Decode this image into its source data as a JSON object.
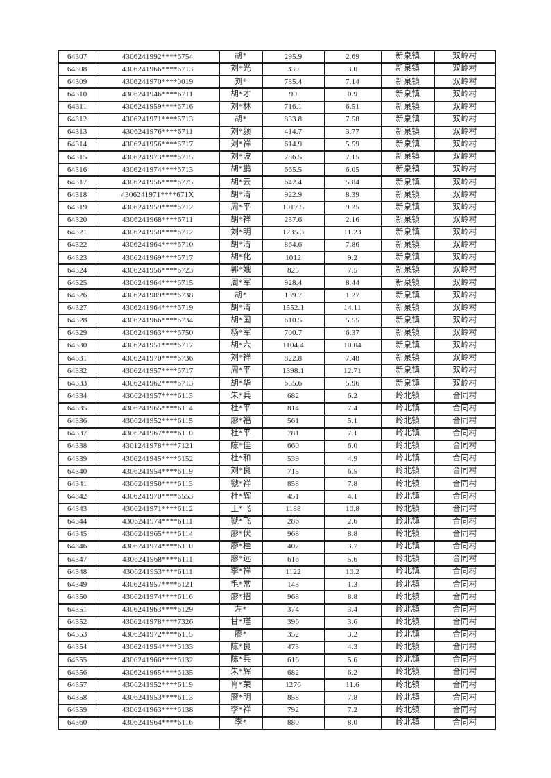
{
  "page": {
    "background_color": "#ffffff",
    "text_color": "#232323",
    "border_color": "#1c1c1c"
  },
  "table": {
    "rows": [
      [
        "64307",
        "4306241992****6754",
        "胡*",
        "295.9",
        "2.69",
        "新泉镇",
        "双岭村"
      ],
      [
        "64308",
        "4306241966****6713",
        "刘*光",
        "330",
        "3.0",
        "新泉镇",
        "双岭村"
      ],
      [
        "64309",
        "4306241970****0019",
        "刘*",
        "785.4",
        "7.14",
        "新泉镇",
        "双岭村"
      ],
      [
        "64310",
        "4306241946****6711",
        "胡*才",
        "99",
        "0.9",
        "新泉镇",
        "双岭村"
      ],
      [
        "64311",
        "4306241959****6716",
        "刘*林",
        "716.1",
        "6.51",
        "新泉镇",
        "双岭村"
      ],
      [
        "64312",
        "4306241971****6713",
        "胡*",
        "833.8",
        "7.58",
        "新泉镇",
        "双岭村"
      ],
      [
        "64313",
        "4306241976****6711",
        "刘*颜",
        "414.7",
        "3.77",
        "新泉镇",
        "双岭村"
      ],
      [
        "64314",
        "4306241956****6717",
        "刘*祥",
        "614.9",
        "5.59",
        "新泉镇",
        "双岭村"
      ],
      [
        "64315",
        "4306241973****6715",
        "刘*波",
        "786.5",
        "7.15",
        "新泉镇",
        "双岭村"
      ],
      [
        "64316",
        "4306241974****6713",
        "胡*鹏",
        "665.5",
        "6.05",
        "新泉镇",
        "双岭村"
      ],
      [
        "64317",
        "4306241956****6775",
        "胡*云",
        "642.4",
        "5.84",
        "新泉镇",
        "双岭村"
      ],
      [
        "64318",
        "4306241971****671X",
        "胡*清",
        "922.9",
        "8.39",
        "新泉镇",
        "双岭村"
      ],
      [
        "64319",
        "4306241959****6712",
        "周*平",
        "1017.5",
        "9.25",
        "新泉镇",
        "双岭村"
      ],
      [
        "64320",
        "4306241968****6711",
        "胡*祥",
        "237.6",
        "2.16",
        "新泉镇",
        "双岭村"
      ],
      [
        "64321",
        "4306241958****6712",
        "刘*明",
        "1235.3",
        "11.23",
        "新泉镇",
        "双岭村"
      ],
      [
        "64322",
        "4306241964****6710",
        "胡*清",
        "864.6",
        "7.86",
        "新泉镇",
        "双岭村"
      ],
      [
        "64323",
        "4306241969****6717",
        "胡*化",
        "1012",
        "9.2",
        "新泉镇",
        "双岭村"
      ],
      [
        "64324",
        "4306241956****6723",
        "郭*娥",
        "825",
        "7.5",
        "新泉镇",
        "双岭村"
      ],
      [
        "64325",
        "4306241964****6715",
        "周*军",
        "928.4",
        "8.44",
        "新泉镇",
        "双岭村"
      ],
      [
        "64326",
        "4306241989****6738",
        "胡*",
        "139.7",
        "1.27",
        "新泉镇",
        "双岭村"
      ],
      [
        "64327",
        "4306241964****6719",
        "胡*清",
        "1552.1",
        "14.11",
        "新泉镇",
        "双岭村"
      ],
      [
        "64328",
        "4306241966****6734",
        "胡*国",
        "610.5",
        "5.55",
        "新泉镇",
        "双岭村"
      ],
      [
        "64329",
        "4306241963****6750",
        "杨*军",
        "700.7",
        "6.37",
        "新泉镇",
        "双岭村"
      ],
      [
        "64330",
        "4306241951****6717",
        "胡*六",
        "1104.4",
        "10.04",
        "新泉镇",
        "双岭村"
      ],
      [
        "64331",
        "4306241970****6736",
        "刘*祥",
        "822.8",
        "7.48",
        "新泉镇",
        "双岭村"
      ],
      [
        "64332",
        "4306241957****6717",
        "周*平",
        "1398.1",
        "12.71",
        "新泉镇",
        "双岭村"
      ],
      [
        "64333",
        "4306241962****6713",
        "胡*华",
        "655.6",
        "5.96",
        "新泉镇",
        "双岭村"
      ],
      [
        "64334",
        "4306241957****6113",
        "朱*兵",
        "682",
        "6.2",
        "岭北镇",
        "合同村"
      ],
      [
        "64335",
        "4306241965****6114",
        "杜*平",
        "814",
        "7.4",
        "岭北镇",
        "合同村"
      ],
      [
        "64336",
        "4306241952****6115",
        "廖*福",
        "561",
        "5.1",
        "岭北镇",
        "合同村"
      ],
      [
        "64337",
        "4306241967****6110",
        "杜*平",
        "781",
        "7.1",
        "岭北镇",
        "合同村"
      ],
      [
        "64338",
        "4301241978****7121",
        "陈*佳",
        "660",
        "6.0",
        "岭北镇",
        "合同村"
      ],
      [
        "64339",
        "4306241945****6152",
        "杜*和",
        "539",
        "4.9",
        "岭北镇",
        "合同村"
      ],
      [
        "64340",
        "4306241954****6119",
        "刘*良",
        "715",
        "6.5",
        "岭北镇",
        "合同村"
      ],
      [
        "64341",
        "4306241950****6113",
        "虢*祥",
        "858",
        "7.8",
        "岭北镇",
        "合同村"
      ],
      [
        "64342",
        "4306241970****6553",
        "杜*辉",
        "451",
        "4.1",
        "岭北镇",
        "合同村"
      ],
      [
        "64343",
        "4306241971****6112",
        "王*飞",
        "1188",
        "10.8",
        "岭北镇",
        "合同村"
      ],
      [
        "64344",
        "4306241974****6111",
        "虢*飞",
        "286",
        "2.6",
        "岭北镇",
        "合同村"
      ],
      [
        "64345",
        "4306241965****6114",
        "廖*伏",
        "968",
        "8.8",
        "岭北镇",
        "合同村"
      ],
      [
        "64346",
        "4306241974****6110",
        "廖*桂",
        "407",
        "3.7",
        "岭北镇",
        "合同村"
      ],
      [
        "64347",
        "4306241968****6111",
        "廖*远",
        "616",
        "5.6",
        "岭北镇",
        "合同村"
      ],
      [
        "64348",
        "4306241953****6111",
        "李*祥",
        "1122",
        "10.2",
        "岭北镇",
        "合同村"
      ],
      [
        "64349",
        "4306241957****6121",
        "毛*常",
        "143",
        "1.3",
        "岭北镇",
        "合同村"
      ],
      [
        "64350",
        "4306241974****6116",
        "廖*招",
        "968",
        "8.8",
        "岭北镇",
        "合同村"
      ],
      [
        "64351",
        "4306241963****6129",
        "左*",
        "374",
        "3.4",
        "岭北镇",
        "合同村"
      ],
      [
        "64352",
        "4306241978****7326",
        "甘*瑾",
        "396",
        "3.6",
        "岭北镇",
        "合同村"
      ],
      [
        "64353",
        "4306241972****6115",
        "廖*",
        "352",
        "3.2",
        "岭北镇",
        "合同村"
      ],
      [
        "64354",
        "4306241954****6133",
        "陈*良",
        "473",
        "4.3",
        "岭北镇",
        "合同村"
      ],
      [
        "64355",
        "4306241966****6132",
        "陈*兵",
        "616",
        "5.6",
        "岭北镇",
        "合同村"
      ],
      [
        "64356",
        "4306241965****6135",
        "朱*辉",
        "682",
        "6.2",
        "岭北镇",
        "合同村"
      ],
      [
        "64357",
        "4306241952****6119",
        "肖*荣",
        "1276",
        "11.6",
        "岭北镇",
        "合同村"
      ],
      [
        "64358",
        "4306241953****6113",
        "廖*明",
        "858",
        "7.8",
        "岭北镇",
        "合同村"
      ],
      [
        "64359",
        "4306241963****6138",
        "李*祥",
        "792",
        "7.2",
        "岭北镇",
        "合同村"
      ],
      [
        "64360",
        "4306241964****6116",
        "李*",
        "880",
        "8.0",
        "岭北镇",
        "合同村"
      ]
    ]
  }
}
